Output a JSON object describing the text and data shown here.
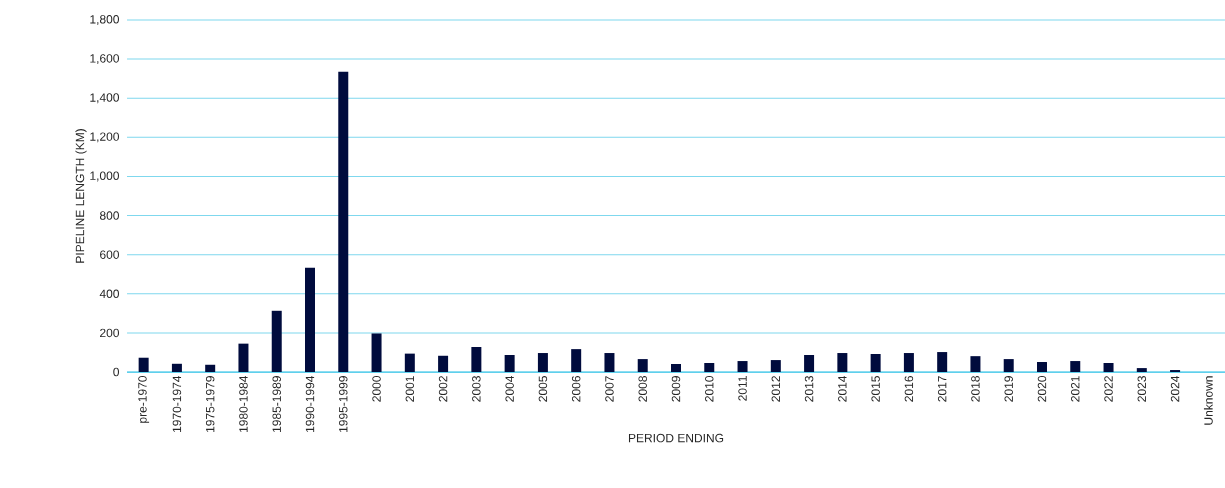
{
  "chart_data": {
    "type": "bar",
    "xlabel": "PERIOD ENDING",
    "ylabel": "PIPELINE LENGTH (KM)",
    "categories": [
      "pre-1970",
      "1970-1974",
      "1975-1979",
      "1980-1984",
      "1985-1989",
      "1990-1994",
      "1995-1999",
      "2000",
      "2001",
      "2002",
      "2003",
      "2004",
      "2005",
      "2006",
      "2007",
      "2008",
      "2009",
      "2010",
      "2011",
      "2012",
      "2013",
      "2014",
      "2015",
      "2016",
      "2017",
      "2018",
      "2019",
      "2020",
      "2021",
      "2022",
      "2023",
      "2024",
      "Unknown"
    ],
    "values": [
      73,
      42,
      37,
      145,
      313,
      533,
      1535,
      197,
      94,
      83,
      128,
      87,
      97,
      117,
      97,
      66,
      41,
      46,
      56,
      61,
      87,
      97,
      92,
      97,
      102,
      81,
      66,
      51,
      56,
      46,
      20,
      10,
      0
    ],
    "color": "#000b3d",
    "ylim": [
      0,
      1800
    ],
    "yticks": [
      {
        "value": 0,
        "label": "0"
      },
      {
        "value": 200,
        "label": "200"
      },
      {
        "value": 400,
        "label": "400"
      },
      {
        "value": 600,
        "label": "600"
      },
      {
        "value": 800,
        "label": "800"
      },
      {
        "value": 1000,
        "label": "1,000"
      },
      {
        "value": 1200,
        "label": "1,200"
      },
      {
        "value": 1400,
        "label": "1,400"
      },
      {
        "value": 1600,
        "label": "1,600"
      },
      {
        "value": 1800,
        "label": "1,800"
      }
    ],
    "grid": "y"
  }
}
